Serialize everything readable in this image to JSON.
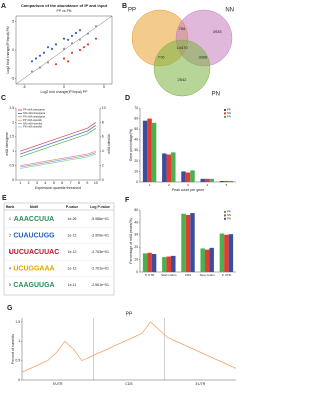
{
  "chart_data": [
    {
      "label": "A",
      "type": "scatter",
      "title": "Comparison of the abundance of IP and input",
      "subtitle": "PP vs PN",
      "x_label": "Log2 fold change(IP/Input) PP",
      "y_label": "Log2 fold change(IP/Input) PN",
      "xlim": [
        -6,
        6
      ],
      "ylim": [
        -6,
        6
      ],
      "xticks": [
        -5,
        0,
        5
      ],
      "yticks": [
        -5,
        0,
        5
      ],
      "series": [
        {
          "color": "#3a5fcd",
          "x": [
            -4,
            -3,
            -2,
            -1,
            0,
            1,
            2,
            -3.5,
            -2.5,
            -1.5,
            0.5,
            1.5
          ],
          "y": [
            -2,
            -1,
            0.5,
            1,
            2,
            2.5,
            3.5,
            -1.5,
            -0.5,
            0.2,
            1.8,
            3
          ]
        },
        {
          "color": "#e03c31",
          "x": [
            -1,
            0,
            1,
            2,
            3,
            4,
            0.5,
            2.5
          ],
          "y": [
            -2.5,
            -1.5,
            -0.5,
            0,
            1,
            2,
            -2,
            0.5
          ]
        },
        {
          "color": "#9a9a9a",
          "x": [
            -4,
            -2,
            0,
            2,
            4,
            -3,
            1,
            3
          ],
          "y": [
            -3.8,
            -2.2,
            0.2,
            1.8,
            4.2,
            -3.1,
            1.2,
            2.9
          ]
        }
      ]
    },
    {
      "label": "B",
      "type": "venn",
      "sets": [
        {
          "name": "PP",
          "color": "#e8a030"
        },
        {
          "name": "NN",
          "color": "#c77dbf"
        },
        {
          "name": "PN",
          "color": "#7cb342"
        }
      ],
      "regions": [
        {
          "sets": [
            "PP",
            "NN"
          ],
          "value": 768
        },
        {
          "sets": [
            "NN"
          ],
          "value": 3935
        },
        {
          "sets": [
            "PP",
            "PN"
          ],
          "value": 776
        },
        {
          "sets": [
            "PP",
            "NN",
            "PN"
          ],
          "value": 14470
        },
        {
          "sets": [
            "NN",
            "PN"
          ],
          "value": 3308
        },
        {
          "sets": [
            "PN"
          ],
          "value": 2542
        }
      ]
    },
    {
      "label": "C",
      "type": "line",
      "x_label": "Expression quantile threshold",
      "y_label": "m6A sites/gene",
      "y2_label": "m6A sites/kb",
      "categories": [
        "1",
        "2",
        "3",
        "4",
        "5",
        "6",
        "7",
        "8",
        "9",
        "10"
      ],
      "ylim": [
        0,
        2.5
      ],
      "yticks": [
        0,
        0.5,
        1,
        1.5,
        2,
        2.5
      ],
      "y2lim": [
        0,
        10
      ],
      "y2ticks": [
        0,
        2,
        4,
        6,
        8,
        10
      ],
      "series": [
        {
          "name": "PP m6A sites/gene",
          "color": "#e03c31",
          "values": [
            1.0,
            1.1,
            1.2,
            1.3,
            1.4,
            1.5,
            1.6,
            1.7,
            1.8,
            2.0
          ]
        },
        {
          "name": "NN m6A sites/gene",
          "color": "#3a5fcd",
          "values": [
            0.9,
            1.0,
            1.1,
            1.2,
            1.3,
            1.4,
            1.5,
            1.6,
            1.7,
            1.9
          ]
        },
        {
          "name": "PN m6A sites/gene",
          "color": "#4caf50",
          "values": [
            0.8,
            0.9,
            1.0,
            1.1,
            1.2,
            1.3,
            1.4,
            1.5,
            1.6,
            1.8
          ]
        },
        {
          "name": "PP m6A sites/kb",
          "color": "#f08080",
          "axis": "y2",
          "values": [
            2.0,
            2.2,
            2.4,
            2.6,
            2.8,
            3.0,
            3.2,
            3.4,
            3.6,
            4.0
          ]
        },
        {
          "name": "NN m6A sites/kb",
          "color": "#7f9fe0",
          "axis": "y2",
          "values": [
            1.8,
            2.0,
            2.2,
            2.4,
            2.6,
            2.8,
            3.0,
            3.2,
            3.4,
            3.8
          ]
        },
        {
          "name": "PN m6A sites/kb",
          "color": "#90d090",
          "axis": "y2",
          "values": [
            1.6,
            1.8,
            2.0,
            2.2,
            2.4,
            2.6,
            2.8,
            3.0,
            3.2,
            3.6
          ]
        }
      ]
    },
    {
      "label": "D",
      "type": "bar",
      "x_label": "Peak count per gene",
      "y_label": "Gene percentage(%)",
      "categories": [
        "1",
        "2",
        "3",
        "4",
        "5"
      ],
      "ylim": [
        0,
        70
      ],
      "yticks": [
        0,
        10,
        20,
        30,
        40,
        50,
        60,
        70
      ],
      "series": [
        {
          "name": "PP",
          "color": "#3a4e9c",
          "values": [
            58,
            27,
            10,
            3,
            1
          ]
        },
        {
          "name": "NN",
          "color": "#e03c31",
          "values": [
            60,
            26,
            9,
            3,
            1
          ]
        },
        {
          "name": "PN",
          "color": "#4caf50",
          "values": [
            56,
            28,
            11,
            3,
            1
          ]
        }
      ]
    },
    {
      "label": "F",
      "type": "bar",
      "y_label": "Percentage of m6A peaks(%)",
      "categories": [
        "5' UTR",
        "Start codon",
        "CDS",
        "Stop codon",
        "3' UTR"
      ],
      "ylim": [
        0,
        50
      ],
      "yticks": [
        0,
        10,
        20,
        30,
        40,
        50
      ],
      "series": [
        {
          "name": "PP",
          "color": "#4caf50",
          "values": [
            15,
            12,
            47,
            19,
            31
          ]
        },
        {
          "name": "NN",
          "color": "#e03c31",
          "values": [
            15.5,
            12.5,
            46,
            18,
            30
          ]
        },
        {
          "name": "PN",
          "color": "#3a4e9c",
          "values": [
            14.5,
            13,
            47.5,
            19.5,
            30.5
          ]
        }
      ]
    },
    {
      "label": "G",
      "type": "line",
      "title": "PP",
      "y_label": "Percent of summits",
      "regions": [
        "5'UTR",
        "CDS",
        "3'UTR"
      ],
      "xlim": [
        0,
        100
      ],
      "ylim": [
        0,
        1.6
      ],
      "yticks": [
        0,
        0.5,
        1,
        1.5
      ],
      "x": [
        0,
        4,
        8,
        12,
        16,
        20,
        24,
        28,
        32,
        36,
        40,
        44,
        48,
        52,
        56,
        60,
        64,
        68,
        72,
        76,
        80,
        84,
        88,
        92,
        96,
        100
      ],
      "series": [
        {
          "color": "#f0a060",
          "values": [
            0.2,
            0.3,
            0.4,
            0.5,
            0.7,
            1.0,
            0.8,
            0.5,
            0.6,
            0.7,
            0.8,
            0.9,
            1.0,
            1.1,
            1.2,
            1.5,
            1.3,
            1.1,
            1.0,
            0.9,
            0.8,
            0.7,
            0.6,
            0.5,
            0.4,
            0.3
          ]
        }
      ]
    }
  ],
  "table": {
    "label": "E",
    "columns": [
      "Rank",
      "Motif",
      "P-value",
      "Log P-value"
    ],
    "rows": [
      [
        "1",
        "AAACCUUA",
        "1e-26",
        "-5.986e+01"
      ],
      [
        "2",
        "CUAUCUGG",
        "1e-12",
        "-2.909e+01"
      ],
      [
        "3",
        "UUCUACUUAC",
        "1e-12",
        "-2.763e+01"
      ],
      [
        "4",
        "UCUGGAAA",
        "1e-12",
        "-2.761e+01"
      ],
      [
        "5",
        "CAAGUUGA",
        "1e-11",
        "-2.561e+01"
      ]
    ]
  }
}
